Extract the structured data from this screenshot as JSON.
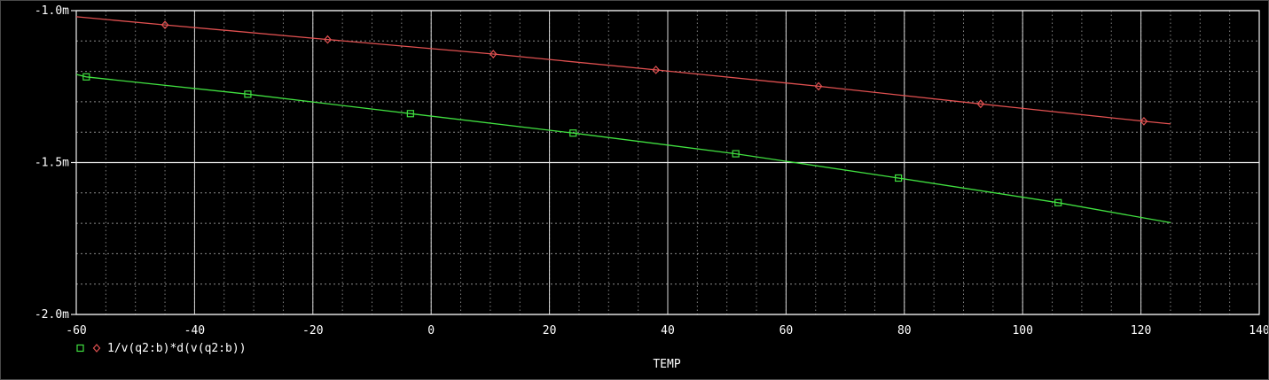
{
  "chart_data": {
    "type": "line",
    "xlabel": "TEMP",
    "ylabel": "",
    "xlim": [
      -60,
      140
    ],
    "ylim": [
      -0.002,
      -0.001
    ],
    "x_ticks": [
      -60,
      -40,
      -20,
      0,
      20,
      40,
      60,
      80,
      100,
      120,
      140
    ],
    "x_tick_labels": [
      "-60",
      "-40",
      "-20",
      "0",
      "20",
      "40",
      "60",
      "80",
      "100",
      "120",
      "140"
    ],
    "y_ticks": [
      -0.001,
      -0.0015,
      -0.002
    ],
    "y_tick_labels": [
      "-1.0m",
      "-1.5m",
      "-2.0m"
    ],
    "grid": true,
    "legend_text": "1/v(q2:b)*d(v(q2:b))",
    "series": [
      {
        "color": "#e05050",
        "marker": "diamond",
        "x": [
          -60,
          -45.0,
          -17.5,
          10.5,
          38.0,
          65.5,
          92.9,
          120.5,
          125
        ],
        "y": [
          -0.00102,
          -0.001047,
          -0.001095,
          -0.001143,
          -0.001195,
          -0.001249,
          -0.001307,
          -0.001364,
          -0.001373
        ]
      },
      {
        "color": "#40e040",
        "marker": "square",
        "x": [
          -60,
          -58.3,
          -31.0,
          -3.5,
          24.0,
          51.5,
          79.0,
          106.0,
          125
        ],
        "y": [
          -0.00121,
          -0.001218,
          -0.001275,
          -0.001339,
          -0.001403,
          -0.001471,
          -0.001551,
          -0.001632,
          -0.001698
        ]
      }
    ]
  }
}
